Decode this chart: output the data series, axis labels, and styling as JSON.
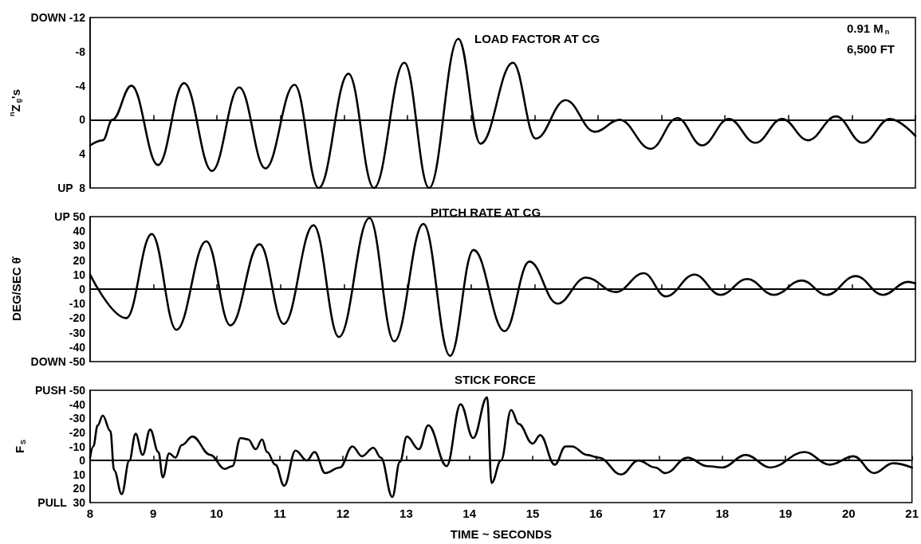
{
  "chart_data": [
    {
      "type": "line",
      "title": "LOAD FACTOR AT CG",
      "ylabel": "$^{n}$Z$_{g}$'s",
      "annotations": [
        "0.91 M$_{n}$",
        "6,500 FT"
      ],
      "x": [
        8,
        8.2,
        8.35,
        8.65,
        9.07,
        9.48,
        9.92,
        10.35,
        10.76,
        11.22,
        11.6,
        12.07,
        12.47,
        12.95,
        13.34,
        13.8,
        14.15,
        14.66,
        15.02,
        15.49,
        15.95,
        16.34,
        16.83,
        17.25,
        17.64,
        18.06,
        18.48,
        18.9,
        19.31,
        19.75,
        20.17,
        20.6,
        21
      ],
      "series": [
        {
          "color": "#000000",
          "values": [
            3,
            2.4,
            0,
            -4,
            5.3,
            -4.3,
            6,
            -3.8,
            5.7,
            -4.1,
            8,
            -5.4,
            8,
            -6.7,
            8,
            -9.5,
            2.8,
            -6.7,
            2.2,
            -2.3,
            1.4,
            0,
            3.4,
            -0.2,
            3,
            -0.1,
            2.7,
            -0.1,
            2.4,
            -0.4,
            2.7,
            -0.1,
            1.9
          ]
        }
      ],
      "xlim": [
        8,
        21
      ],
      "xticks": [
        8,
        9,
        10,
        11,
        12,
        13,
        14,
        15,
        16,
        17,
        18,
        19,
        20,
        21
      ],
      "ylim": [
        8,
        -12
      ],
      "yticks": [
        {
          "value": -12,
          "label": "DOWN -12"
        },
        -8,
        -4,
        0,
        4,
        {
          "value": 8,
          "label": "UP  8"
        }
      ],
      "ref_lines": [
        {
          "axis": "y",
          "value": 0
        }
      ],
      "grid": false,
      "tick_labels": "y"
    },
    {
      "type": "line",
      "title": "PITCH RATE AT CG",
      "ylabel": "DEG/SEC θ̇",
      "x": [
        8,
        8.57,
        8.97,
        9.36,
        9.83,
        10.21,
        10.67,
        11.05,
        11.52,
        11.92,
        12.4,
        12.79,
        13.25,
        13.67,
        14.04,
        14.53,
        14.92,
        15.36,
        15.81,
        16.28,
        16.72,
        17.07,
        17.52,
        17.93,
        18.35,
        18.77,
        19.21,
        19.6,
        20.06,
        20.49,
        20.88,
        21
      ],
      "series": [
        {
          "color": "#000000",
          "values": [
            10,
            -20,
            38,
            -28,
            33,
            -25,
            31,
            -24,
            44,
            -33,
            49,
            -36,
            45,
            -46,
            27,
            -29,
            19,
            -10,
            8,
            -2,
            11,
            -5,
            10,
            -4,
            7,
            -4,
            6,
            -4,
            9,
            -4,
            5,
            4
          ]
        }
      ],
      "xlim": [
        8,
        21
      ],
      "xticks": [
        8,
        9,
        10,
        11,
        12,
        13,
        14,
        15,
        16,
        17,
        18,
        19,
        20,
        21
      ],
      "ylim": [
        -50,
        50
      ],
      "yticks": [
        {
          "value": -50,
          "label": "DOWN -50"
        },
        -40,
        -30,
        -20,
        -10,
        0,
        10,
        20,
        30,
        40,
        {
          "value": 50,
          "label": "UP 50"
        }
      ],
      "ref_lines": [
        {
          "axis": "y",
          "value": 0
        }
      ],
      "grid": false,
      "tick_labels": "y"
    },
    {
      "type": "line",
      "title": "STICK FORCE",
      "ylabel": "F$_{S}$",
      "xlabel": "TIME ~ SECONDS",
      "x": [
        8,
        8.05,
        8.12,
        8.2,
        8.32,
        8.38,
        8.5,
        8.62,
        8.72,
        8.83,
        8.95,
        9.08,
        9.15,
        9.25,
        9.35,
        9.45,
        9.62,
        9.9,
        10.13,
        10.25,
        10.38,
        10.5,
        10.62,
        10.72,
        10.8,
        10.93,
        11.07,
        11.25,
        11.43,
        11.55,
        11.72,
        11.95,
        12.15,
        12.3,
        12.48,
        12.6,
        12.78,
        12.9,
        13.01,
        13.2,
        13.35,
        13.64,
        13.86,
        14.06,
        14.28,
        14.35,
        14.5,
        14.66,
        14.78,
        15.0,
        15.12,
        15.35,
        15.52,
        15.62,
        15.86,
        16.05,
        16.4,
        16.67,
        16.94,
        17.1,
        17.45,
        17.76,
        18.0,
        18.37,
        18.76,
        19.3,
        19.7,
        20.08,
        20.4,
        20.7,
        21
      ],
      "series": [
        {
          "color": "#000000",
          "values": [
            -2,
            -10,
            -25,
            -32,
            -21,
            7,
            24,
            0,
            -19,
            -4,
            -22,
            -6,
            12,
            -5,
            -2,
            -11,
            -17,
            -4,
            6,
            4,
            -16,
            -15,
            -8,
            -15,
            -6,
            3,
            18,
            -7,
            0,
            -6,
            9,
            5,
            -10,
            -3,
            -9,
            -2,
            26,
            1,
            -17,
            -8,
            -25,
            4,
            -40,
            -16,
            -45,
            16,
            0,
            -36,
            -26,
            -12,
            -18,
            3,
            -10,
            -10,
            -4,
            -2,
            10,
            0,
            5,
            9,
            -2,
            4,
            5,
            -4,
            5,
            -6,
            3,
            -3,
            9,
            2,
            5
          ]
        }
      ],
      "xlim": [
        8,
        21
      ],
      "xticks": [
        8,
        9,
        10,
        11,
        12,
        13,
        14,
        15,
        16,
        17,
        18,
        19,
        20,
        21
      ],
      "ylim": [
        30,
        -50
      ],
      "yticks": [
        {
          "value": -50,
          "label": "PUSH -50"
        },
        -40,
        -30,
        -20,
        -10,
        0,
        10,
        20,
        {
          "value": 30,
          "label": "PULL  30"
        }
      ],
      "ref_lines": [
        {
          "axis": "y",
          "value": 0
        }
      ],
      "grid": false
    }
  ]
}
